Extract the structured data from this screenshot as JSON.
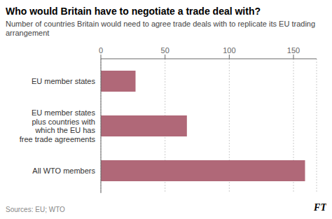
{
  "chart_data": {
    "type": "bar",
    "title": "Who would Britain have to negotiate a trade deal with?",
    "subtitle": "Number of countries Britain would need to agree trade deals with to replicate its EU trading arrangement",
    "categories": [
      "EU member states",
      "EU member states\nplus countries with\nwhich the EU has\nfree trade agreements",
      "All WTO members"
    ],
    "values": [
      27,
      67,
      159
    ],
    "color": "#b06878",
    "orientation": "horizontal",
    "xlim": [
      0,
      168
    ],
    "xticks": [
      0,
      50,
      100,
      150
    ],
    "grid": true,
    "annotations": [
      "Sources: EU; WTO",
      "FT"
    ]
  }
}
